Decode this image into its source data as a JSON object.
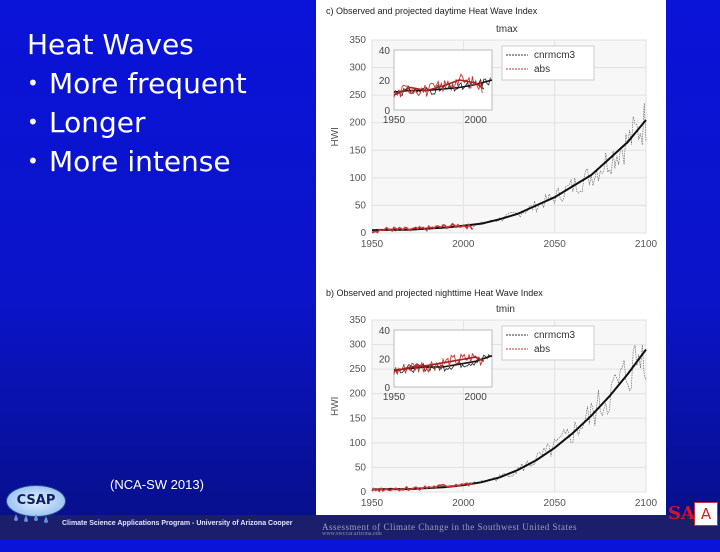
{
  "slide": {
    "title": "Heat Waves",
    "bullets": [
      "More frequent",
      "Longer",
      "More intense"
    ],
    "bullet_glyph": "•",
    "citation": "(NCA-SW 2013)"
  },
  "footer": {
    "program_text": "Climate Science Applications Program - University of Arizona Cooper",
    "assessment_text": "Assessment of Climate Change in the Southwest United States",
    "url_text": "www.swccar.arizona.edu",
    "logo_text": "CSAP",
    "nasa_text": "SA",
    "sponsor_text": "A"
  },
  "panels": [
    {
      "title": "c) Observed and projected daytime Heat Wave Index",
      "variable": "tmax",
      "ylabel": "HWI",
      "legend": [
        "cnrmcm3",
        "abs"
      ],
      "yticks": [
        "0",
        "50",
        "100",
        "150",
        "200",
        "250",
        "300",
        "350"
      ],
      "xticks": [
        "1950",
        "2000",
        "2050",
        "2100"
      ],
      "inset_yticks": [
        "0",
        "20",
        "40"
      ],
      "inset_xticks": [
        "1950",
        "2000"
      ]
    },
    {
      "title": "b) Observed and projected nighttime Heat Wave Index",
      "variable": "tmin",
      "ylabel": "HWI",
      "legend": [
        "cnrmcm3",
        "abs"
      ],
      "yticks": [
        "0",
        "50",
        "100",
        "150",
        "200",
        "250",
        "300",
        "350"
      ],
      "xticks": [
        "1950",
        "2000",
        "2050",
        "2100"
      ],
      "inset_yticks": [
        "0",
        "20",
        "40"
      ],
      "inset_xticks": [
        "1950",
        "2000"
      ]
    }
  ],
  "chart_data": [
    {
      "type": "line",
      "title": "c) Observed and projected daytime Heat Wave Index",
      "subtitle": "tmax",
      "xlabel": "",
      "ylabel": "HWI",
      "xlim": [
        1950,
        2100
      ],
      "ylim": [
        0,
        350
      ],
      "legend_placement": "top-right",
      "grid": true,
      "series": [
        {
          "name": "cnrmcm3",
          "color": "#111111",
          "x": [
            1950,
            1960,
            1970,
            1980,
            1990,
            2000,
            2010,
            2020,
            2030,
            2040,
            2050,
            2060,
            2070,
            2080,
            2090,
            2100
          ],
          "values": [
            5,
            6,
            6,
            8,
            10,
            13,
            17,
            25,
            35,
            50,
            65,
            85,
            105,
            135,
            165,
            205
          ]
        },
        {
          "name": "abs",
          "color": "#cc3333",
          "x": [
            1950,
            1960,
            1970,
            1980,
            1990,
            2000,
            2005
          ],
          "values": [
            4,
            7,
            6,
            8,
            12,
            14,
            10
          ]
        }
      ],
      "inset": {
        "xlim": [
          1950,
          2010
        ],
        "ylim": [
          0,
          40
        ],
        "series": [
          {
            "name": "cnrmcm3",
            "x": [
              1950,
              1960,
              1970,
              1980,
              1990,
              2000,
              2010
            ],
            "values": [
              12,
              13,
              13,
              14,
              15,
              17,
              20
            ]
          },
          {
            "name": "abs",
            "x": [
              1950,
              1960,
              1970,
              1980,
              1990,
              2000,
              2005
            ],
            "values": [
              10,
              15,
              13,
              16,
              20,
              18,
              14
            ]
          }
        ]
      }
    },
    {
      "type": "line",
      "title": "b) Observed and projected nighttime Heat Wave Index",
      "subtitle": "tmin",
      "xlabel": "",
      "ylabel": "HWI",
      "xlim": [
        1950,
        2100
      ],
      "ylim": [
        0,
        350
      ],
      "legend_placement": "top-right",
      "grid": true,
      "series": [
        {
          "name": "cnrmcm3",
          "color": "#111111",
          "x": [
            1950,
            1960,
            1970,
            1980,
            1990,
            2000,
            2010,
            2020,
            2030,
            2040,
            2050,
            2060,
            2070,
            2080,
            2090,
            2100
          ],
          "values": [
            5,
            6,
            6,
            8,
            10,
            14,
            20,
            30,
            45,
            65,
            90,
            120,
            155,
            195,
            240,
            290
          ]
        },
        {
          "name": "abs",
          "color": "#cc3333",
          "x": [
            1950,
            1960,
            1970,
            1980,
            1990,
            2000,
            2005
          ],
          "values": [
            4,
            6,
            7,
            9,
            12,
            16,
            14
          ]
        }
      ],
      "inset": {
        "xlim": [
          1950,
          2010
        ],
        "ylim": [
          0,
          40
        ],
        "series": [
          {
            "name": "cnrmcm3",
            "x": [
              1950,
              1960,
              1970,
              1980,
              1990,
              2000,
              2010
            ],
            "values": [
              12,
              13,
              14,
              14,
              16,
              18,
              22
            ]
          },
          {
            "name": "abs",
            "x": [
              1950,
              1960,
              1970,
              1980,
              1990,
              2000,
              2005
            ],
            "values": [
              11,
              14,
              15,
              17,
              19,
              21,
              18
            ]
          }
        ]
      }
    }
  ]
}
